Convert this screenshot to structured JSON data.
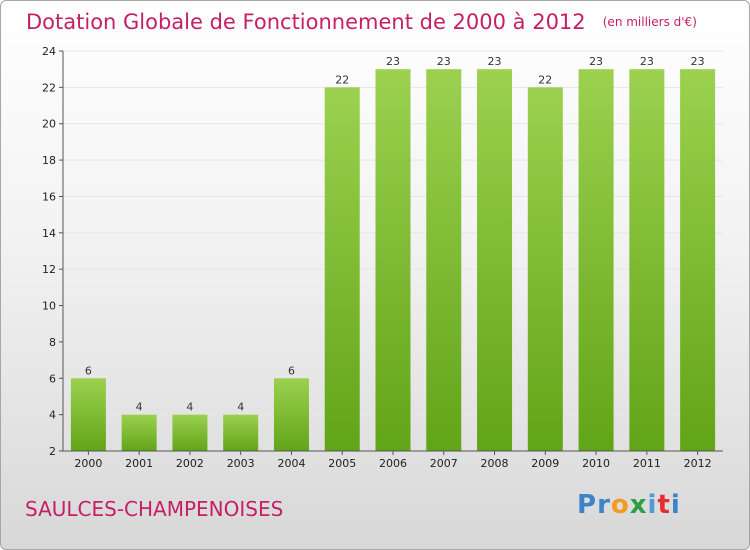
{
  "header": {
    "title": "Dotation Globale de Fonctionnement de 2000 à 2012",
    "subtitle": "(en milliers d'€)"
  },
  "footer": {
    "commune": "SAULCES-CHAMPENOISES",
    "logo": [
      "P",
      "r",
      "o",
      "x",
      "i",
      "t",
      "i"
    ]
  },
  "colors": {
    "bar_top": "#9bd14f",
    "bar_bottom": "#62a418",
    "title": "#c51f66"
  },
  "chart_data": {
    "type": "bar",
    "title": "Dotation Globale de Fonctionnement de 2000 à 2012",
    "subtitle": "(en milliers d'€)",
    "categories": [
      "2000",
      "2001",
      "2002",
      "2003",
      "2004",
      "2005",
      "2006",
      "2007",
      "2008",
      "2009",
      "2010",
      "2011",
      "2012"
    ],
    "values": [
      6,
      4,
      4,
      4,
      6,
      22,
      23,
      23,
      23,
      22,
      23,
      23,
      23
    ],
    "ylim": [
      2,
      24
    ],
    "yticks": [
      2,
      4,
      6,
      8,
      10,
      12,
      14,
      16,
      18,
      20,
      22,
      24
    ],
    "grid": true,
    "legend": "none"
  }
}
